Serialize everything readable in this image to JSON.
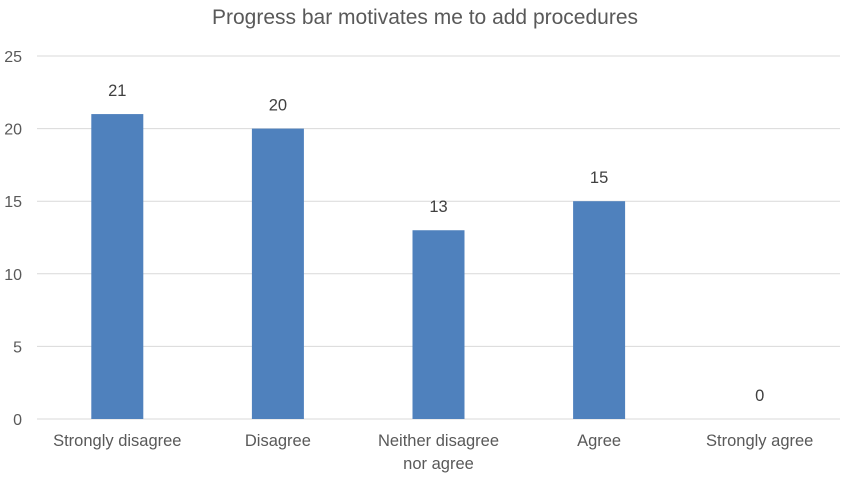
{
  "chart_data": {
    "type": "bar",
    "title": "Progress bar motivates me to add procedures",
    "categories": [
      [
        "Strongly disagree"
      ],
      [
        "Disagree"
      ],
      [
        "Neither disagree",
        "nor agree"
      ],
      [
        "Agree"
      ],
      [
        "Strongly agree"
      ]
    ],
    "values": [
      21,
      20,
      13,
      15,
      0
    ],
    "data_labels": [
      "21",
      "20",
      "13",
      "15",
      "0"
    ],
    "ylim": [
      0,
      25
    ],
    "yticks": [
      0,
      5,
      10,
      15,
      20,
      25
    ],
    "xlabel": "",
    "ylabel": "",
    "grid": "horizontal",
    "legend": "none",
    "colors": {
      "bar": "#4f81bd",
      "grid": "#d9d9d9",
      "text": "#595959"
    }
  }
}
